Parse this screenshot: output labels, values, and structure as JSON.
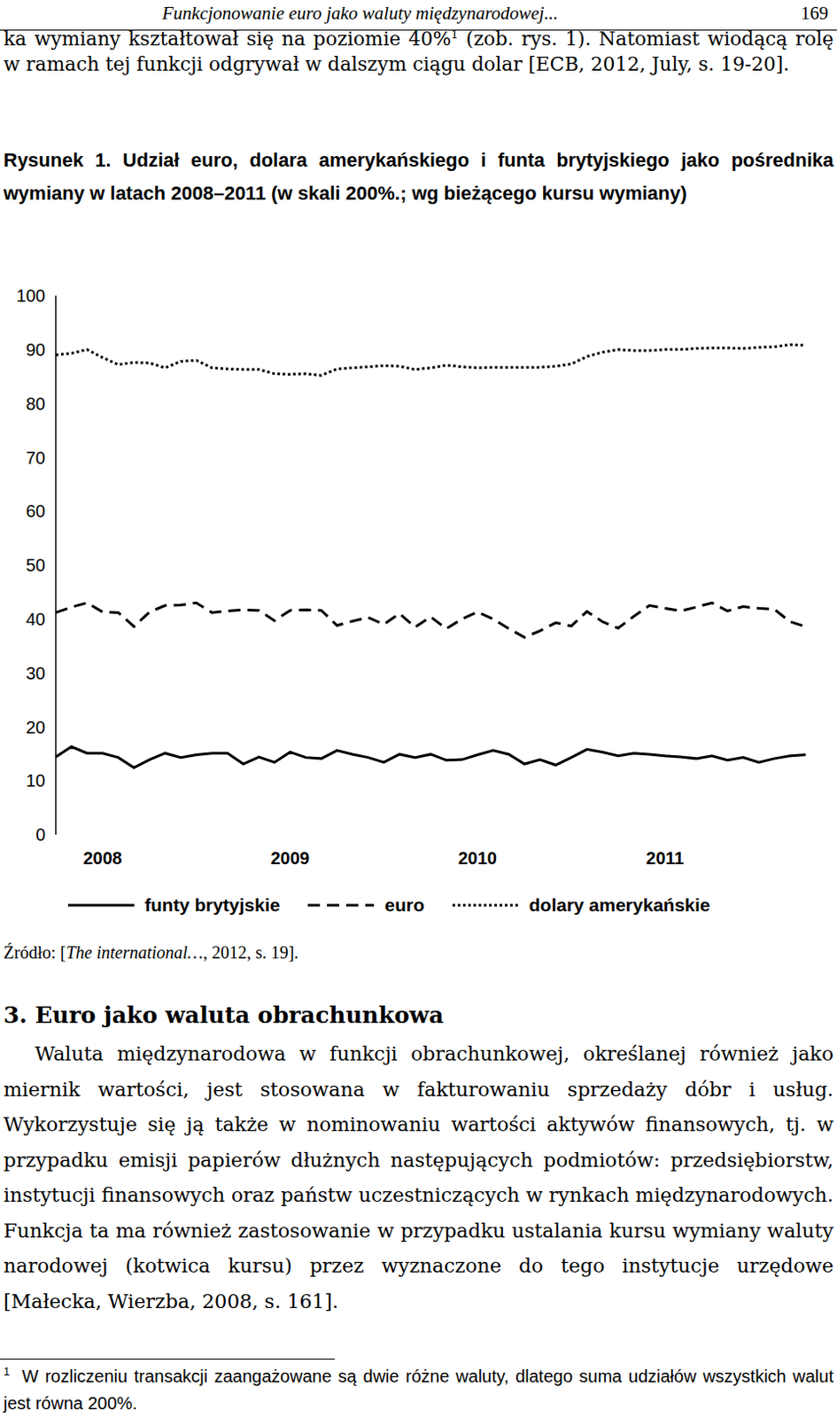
{
  "header": {
    "title": "Funkcjonowanie euro jako waluty międzynarodowej...",
    "page": 169
  },
  "intro": {
    "text_before": "ka wymiany kształtował się na poziomie 40%",
    "footnote_mark": 1,
    "text_after": " (zob. rys. 1). Natomiast wiodącą rolę w ramach tej funkcji odgrywał w dalszym ciągu dolar [ECB, 2012, July, s. 19-20]."
  },
  "figure": {
    "caption": "Rysunek 1. Udział euro, dolara amerykańskiego i funta brytyjskiego jako pośrednika wymiany w latach 2008–2011 (w skali 200%.; wg bieżącego kursu wymiany)",
    "source": {
      "prefix": "Źródło: [",
      "title": "The international…",
      "suffix": ", 2012, s. 19]."
    }
  },
  "chart_data": {
    "type": "line",
    "categories": [
      null,
      null,
      null,
      "2008",
      null,
      null,
      null,
      null,
      null,
      null,
      null,
      null,
      null,
      null,
      null,
      "2009",
      null,
      null,
      null,
      null,
      null,
      null,
      null,
      null,
      null,
      null,
      null,
      "2010",
      null,
      null,
      null,
      null,
      null,
      null,
      null,
      null,
      null,
      null,
      null,
      "2011",
      null,
      null,
      null,
      null,
      null,
      null,
      null,
      null,
      null
    ],
    "series": [
      {
        "name": "funty brytyjskie",
        "color": "#000000",
        "line_style": "solid",
        "values": [
          14.4,
          16.3,
          15.1,
          15.1,
          14.3,
          12.4,
          13.9,
          15.1,
          14.3,
          14.8,
          15.1,
          15.1,
          13.1,
          14.4,
          13.4,
          15.3,
          14.3,
          14.1,
          15.6,
          14.9,
          14.3,
          13.4,
          14.9,
          14.3,
          14.9,
          13.8,
          13.9,
          14.8,
          15.6,
          14.9,
          13.1,
          13.9,
          12.9,
          14.3,
          15.8,
          15.3,
          14.6,
          15.1,
          14.9,
          14.6,
          14.4,
          14.1,
          14.6,
          13.8,
          14.3,
          13.4,
          14.1,
          14.6,
          14.8
        ]
      },
      {
        "name": "euro",
        "color": "#000000",
        "line_style": "dashed",
        "values": [
          41.2,
          42.2,
          43.0,
          41.3,
          41.2,
          38.6,
          41.3,
          42.5,
          42.6,
          43.0,
          41.2,
          41.5,
          41.7,
          41.6,
          39.7,
          41.6,
          41.7,
          41.6,
          38.8,
          39.6,
          40.3,
          39.0,
          41.0,
          38.5,
          40.4,
          38.2,
          40.0,
          41.3,
          40.0,
          38.2,
          36.6,
          37.8,
          39.3,
          38.7,
          41.4,
          39.5,
          38.3,
          40.5,
          42.5,
          42.0,
          41.5,
          42.2,
          43.0,
          41.5,
          42.3,
          42.0,
          41.8,
          39.5,
          38.6
        ]
      },
      {
        "name": "dolary amerykańskie",
        "color": "#000000",
        "line_style": "dotted",
        "values": [
          89.0,
          89.3,
          90.0,
          88.5,
          87.2,
          87.6,
          87.5,
          86.6,
          87.8,
          88.0,
          86.6,
          86.4,
          86.3,
          86.3,
          85.5,
          85.4,
          85.5,
          85.2,
          86.4,
          86.6,
          86.8,
          87.0,
          86.9,
          86.3,
          86.6,
          87.1,
          86.8,
          86.6,
          86.7,
          86.7,
          86.7,
          86.7,
          86.9,
          87.3,
          88.7,
          89.5,
          90.0,
          89.8,
          89.8,
          90.0,
          90.0,
          90.2,
          90.3,
          90.3,
          90.2,
          90.4,
          90.5,
          90.9,
          90.8
        ]
      }
    ],
    "ylim": [
      0,
      100
    ],
    "yticks": [
      0,
      10,
      20,
      30,
      40,
      50,
      60,
      70,
      80,
      90,
      100
    ],
    "grid": false,
    "legend": "bottom"
  },
  "section": {
    "heading": "3. Euro jako waluta obrachunkowa",
    "paragraph": "Waluta międzynarodowa w funkcji obrachunkowej, określanej również jako miernik wartości, jest stosowana w fakturowaniu sprzedaży dóbr i usług. Wykorzystuje się ją także w nominowaniu wartości aktywów finansowych, tj. w przypadku emisji papierów dłużnych następujących podmiotów: przedsiębiorstw, instytucji finansowych oraz państw uczestniczących w rynkach międzynarodowych. Funkcja ta ma również zastosowanie w przypadku ustalania kursu wymiany waluty narodowej (kotwica kursu) przez wyznaczone do tego instytucje urzędowe [Małecka, Wierzba, 2008, s. 161]."
  },
  "footnote": {
    "mark": 1,
    "text": "W rozliczeniu transakcji zaangażowane są dwie różne waluty, dlatego suma udziałów wszystkich walut jest równa 200%."
  }
}
